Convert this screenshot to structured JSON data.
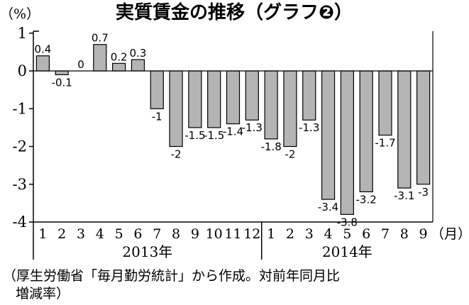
{
  "chart_data": {
    "type": "bar",
    "title": "実質賃金の推移（グラフ❷）",
    "ylabel": "（%）",
    "xunit": "（月）",
    "ylim": [
      -4,
      1
    ],
    "yticks": [
      1,
      0,
      -1,
      -2,
      -3,
      -4
    ],
    "categories": [
      "1",
      "2",
      "3",
      "4",
      "5",
      "6",
      "7",
      "8",
      "9",
      "10",
      "11",
      "12",
      "1",
      "2",
      "3",
      "4",
      "5",
      "6",
      "7",
      "8",
      "9"
    ],
    "values": [
      0.4,
      -0.1,
      0,
      0.7,
      0.2,
      0.3,
      -1,
      -2,
      -1.5,
      -1.5,
      -1.4,
      -1.3,
      -1.8,
      -2,
      -1.3,
      -3.4,
      -3.8,
      -3.2,
      -1.7,
      -3.1,
      -3
    ],
    "years": [
      {
        "label": "2013年",
        "count": 12
      },
      {
        "label": "2014年",
        "count": 9
      }
    ],
    "bar_color": "#b4b4b4",
    "grid": false
  },
  "source_note": {
    "line1": "（厚生労働省「毎月勤労統計」から作成。対前年同月比",
    "line2": "増減率）"
  }
}
